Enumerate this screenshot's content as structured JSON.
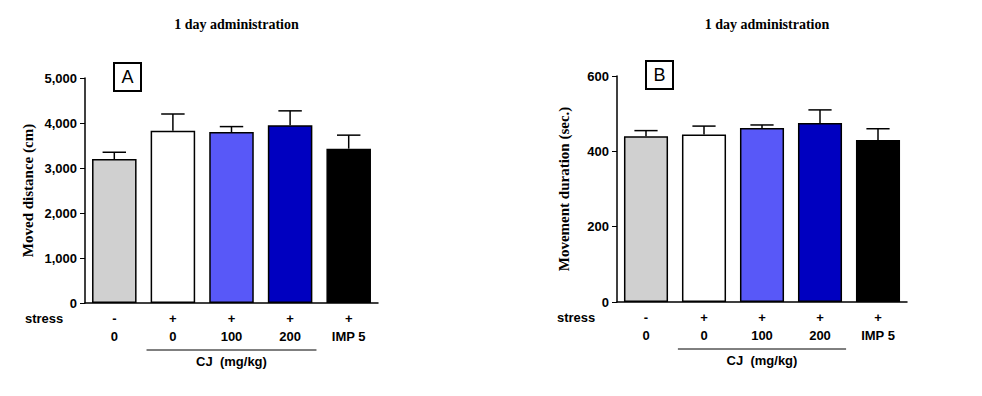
{
  "chart_data": [
    {
      "type": "bar",
      "title": "1 day administration",
      "panel": "A",
      "y_label": "Moved distance (cm)",
      "stress_label": "stress",
      "stress": [
        "-",
        "+",
        "+",
        "+",
        "+"
      ],
      "categories": [
        "0",
        "0",
        "100",
        "200",
        "IMP 5"
      ],
      "group_label": "CJ  (mg/kg)",
      "values": [
        3200,
        3830,
        3800,
        3950,
        3430
      ],
      "errors": [
        150,
        370,
        120,
        320,
        300
      ],
      "colors": [
        "#d0d0d0",
        "#ffffff",
        "#5858f8",
        "#0000c0",
        "#000000"
      ],
      "ylim": [
        0,
        5000
      ],
      "yticks": [
        0,
        1000,
        2000,
        3000,
        4000,
        5000
      ],
      "grid": false
    },
    {
      "type": "bar",
      "title": "1 day administration",
      "panel": "B",
      "y_label": "Movement duration (sec.)",
      "stress_label": "stress",
      "stress": [
        "-",
        "+",
        "+",
        "+",
        "+"
      ],
      "categories": [
        "0",
        "0",
        "100",
        "200",
        "IMP 5"
      ],
      "group_label": "CJ  (mg/kg)",
      "values": [
        440,
        445,
        462,
        475,
        430
      ],
      "errors": [
        15,
        22,
        8,
        35,
        30
      ],
      "colors": [
        "#d0d0d0",
        "#ffffff",
        "#5858f8",
        "#0000c0",
        "#000000"
      ],
      "ylim": [
        0,
        600
      ],
      "yticks": [
        0,
        200,
        400,
        600
      ],
      "grid": false
    }
  ]
}
